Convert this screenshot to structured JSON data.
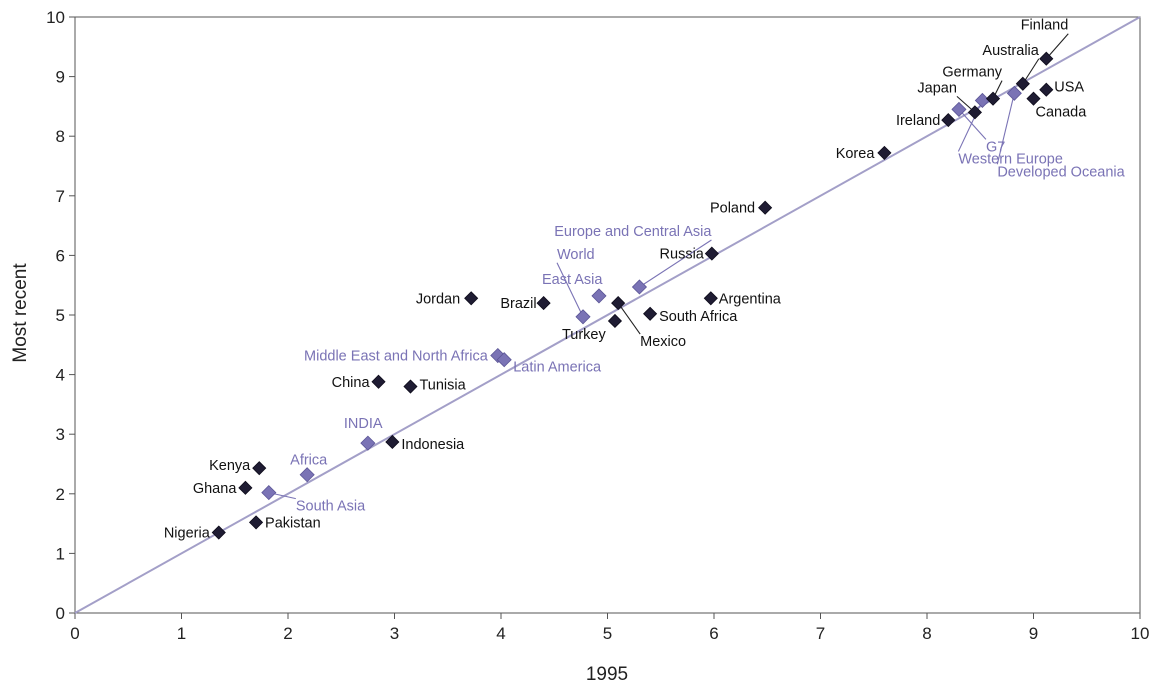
{
  "chart_data": {
    "type": "scatter",
    "title": "",
    "xlabel": "1995",
    "ylabel": "Most recent",
    "xlim": [
      0,
      10
    ],
    "ylim": [
      0,
      10
    ],
    "x_ticks": [
      "0",
      "1",
      "2",
      "3",
      "4",
      "5",
      "6",
      "7",
      "8",
      "9",
      "10"
    ],
    "y_ticks": [
      "0",
      "1",
      "2",
      "3",
      "4",
      "5",
      "6",
      "7",
      "8",
      "9",
      "10"
    ],
    "grid": false,
    "reference_line": {
      "from": [
        0,
        0
      ],
      "to": [
        10,
        10
      ],
      "color": "#a39fc8"
    },
    "colors": {
      "country": "#1f1c33",
      "region": "#7a73b5",
      "region_text": "#7a73b5",
      "country_text": "#111111"
    },
    "points": [
      {
        "label": "Nigeria",
        "x": 1.35,
        "y": 1.35,
        "group": "country"
      },
      {
        "label": "Pakistan",
        "x": 1.7,
        "y": 1.52,
        "group": "country"
      },
      {
        "label": "Ghana",
        "x": 1.6,
        "y": 2.1,
        "group": "country"
      },
      {
        "label": "Kenya",
        "x": 1.73,
        "y": 2.43,
        "group": "country"
      },
      {
        "label": "South Asia",
        "x": 1.82,
        "y": 2.02,
        "group": "region"
      },
      {
        "label": "Africa",
        "x": 2.18,
        "y": 2.32,
        "group": "region"
      },
      {
        "label": "INDIA",
        "x": 2.75,
        "y": 2.85,
        "group": "region"
      },
      {
        "label": "Indonesia",
        "x": 2.98,
        "y": 2.87,
        "group": "country"
      },
      {
        "label": "China",
        "x": 2.85,
        "y": 3.88,
        "group": "country"
      },
      {
        "label": "Tunisia",
        "x": 3.15,
        "y": 3.8,
        "group": "country"
      },
      {
        "label": "Middle East and North Africa",
        "x": 3.97,
        "y": 4.32,
        "group": "region"
      },
      {
        "label": "Latin America",
        "x": 4.03,
        "y": 4.25,
        "group": "region"
      },
      {
        "label": "Jordan",
        "x": 3.72,
        "y": 5.28,
        "group": "country"
      },
      {
        "label": "Brazil",
        "x": 4.4,
        "y": 5.2,
        "group": "country"
      },
      {
        "label": "World",
        "x": 4.77,
        "y": 4.97,
        "group": "region"
      },
      {
        "label": "East Asia",
        "x": 4.92,
        "y": 5.32,
        "group": "region"
      },
      {
        "label": "Turkey",
        "x": 5.07,
        "y": 4.9,
        "group": "country"
      },
      {
        "label": "Mexico",
        "x": 5.1,
        "y": 5.2,
        "group": "country"
      },
      {
        "label": "South Africa",
        "x": 5.4,
        "y": 5.02,
        "group": "country"
      },
      {
        "label": "Europe and Central Asia",
        "x": 5.3,
        "y": 5.47,
        "group": "region"
      },
      {
        "label": "Argentina",
        "x": 5.97,
        "y": 5.28,
        "group": "country"
      },
      {
        "label": "Russia",
        "x": 5.98,
        "y": 6.03,
        "group": "country"
      },
      {
        "label": "Poland",
        "x": 6.48,
        "y": 6.8,
        "group": "country"
      },
      {
        "label": "Korea",
        "x": 7.6,
        "y": 7.72,
        "group": "country"
      },
      {
        "label": "Ireland",
        "x": 8.2,
        "y": 8.27,
        "group": "country"
      },
      {
        "label": "Japan",
        "x": 8.45,
        "y": 8.4,
        "group": "country"
      },
      {
        "label": "G7",
        "x": 8.3,
        "y": 8.45,
        "group": "region"
      },
      {
        "label": "Western Europe",
        "x": 8.52,
        "y": 8.6,
        "group": "region"
      },
      {
        "label": "Germany",
        "x": 8.62,
        "y": 8.63,
        "group": "country"
      },
      {
        "label": "Developed Oceania",
        "x": 8.82,
        "y": 8.72,
        "group": "region"
      },
      {
        "label": "Canada",
        "x": 9.0,
        "y": 8.63,
        "group": "country"
      },
      {
        "label": "Australia",
        "x": 8.9,
        "y": 8.88,
        "group": "country"
      },
      {
        "label": "USA",
        "x": 9.12,
        "y": 8.78,
        "group": "country"
      },
      {
        "label": "Finland",
        "x": 9.12,
        "y": 9.3,
        "group": "country"
      }
    ]
  }
}
